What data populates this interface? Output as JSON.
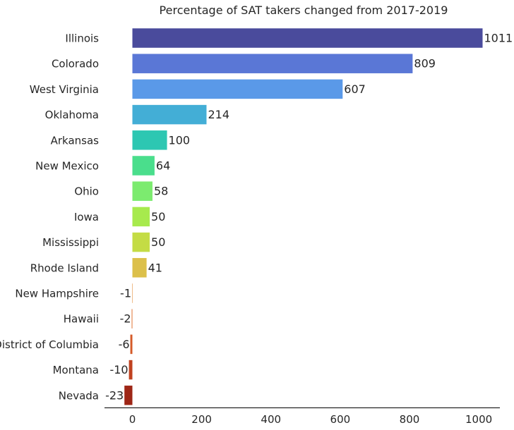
{
  "chart_data": {
    "type": "bar",
    "orientation": "horizontal",
    "title": "Percentage of SAT takers changed from 2017-2019",
    "xlabel": "",
    "ylabel": "",
    "categories": [
      "Illinois",
      "Colorado",
      "West Virginia",
      "Oklahoma",
      "Arkansas",
      "New Mexico",
      "Ohio",
      "Iowa",
      "Mississippi",
      "Rhode Island",
      "New Hampshire",
      "Hawaii",
      "District of Columbia",
      "Montana",
      "Nevada"
    ],
    "values": [
      1011,
      809,
      607,
      214,
      100,
      64,
      58,
      50,
      50,
      41,
      -1,
      -2,
      -6,
      -10,
      -23
    ],
    "colors": [
      "#4a4b9c",
      "#5a77d6",
      "#5a99e8",
      "#43aed6",
      "#2dc7b2",
      "#4ade8c",
      "#7ceb6f",
      "#a7ea4d",
      "#c4dc45",
      "#dcc04a",
      "#e5903d",
      "#df7130",
      "#d45a28",
      "#c04220",
      "#9e2616"
    ],
    "xlim": [
      -80,
      1060
    ],
    "xticks": [
      0,
      200,
      400,
      600,
      800,
      1000
    ],
    "grid": false
  }
}
